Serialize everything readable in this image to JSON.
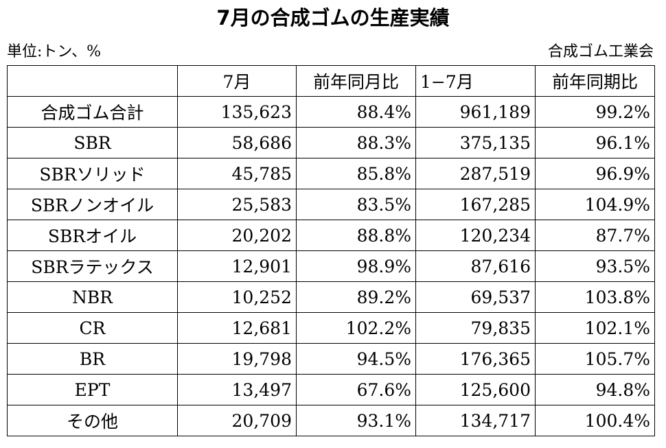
{
  "title": "7月の合成ゴムの生産実績",
  "unit_label": "単位:トン、%",
  "source_label": "合成ゴム工業会",
  "chart_data": {
    "type": "table",
    "title": "7月の合成ゴムの生産実績",
    "columns": [
      "",
      "7月",
      "前年同月比",
      "1−7月",
      "前年同期比"
    ],
    "rows": [
      {
        "name": "合成ゴム合計",
        "month": "135,623",
        "month_yoy": "88.4%",
        "ytd": "961,189",
        "ytd_yoy": "99.2%"
      },
      {
        "name": "SBR",
        "month": "58,686",
        "month_yoy": "88.3%",
        "ytd": "375,135",
        "ytd_yoy": "96.1%"
      },
      {
        "name": "SBRソリッド",
        "month": "45,785",
        "month_yoy": "85.8%",
        "ytd": "287,519",
        "ytd_yoy": "96.9%"
      },
      {
        "name": "SBRノンオイル",
        "month": "25,583",
        "month_yoy": "83.5%",
        "ytd": "167,285",
        "ytd_yoy": "104.9%"
      },
      {
        "name": "SBRオイル",
        "month": "20,202",
        "month_yoy": "88.8%",
        "ytd": "120,234",
        "ytd_yoy": "87.7%"
      },
      {
        "name": "SBRラテックス",
        "month": "12,901",
        "month_yoy": "98.9%",
        "ytd": "87,616",
        "ytd_yoy": "93.5%"
      },
      {
        "name": "NBR",
        "month": "10,252",
        "month_yoy": "89.2%",
        "ytd": "69,537",
        "ytd_yoy": "103.8%"
      },
      {
        "name": "CR",
        "month": "12,681",
        "month_yoy": "102.2%",
        "ytd": "79,835",
        "ytd_yoy": "102.1%"
      },
      {
        "name": "BR",
        "month": "19,798",
        "month_yoy": "94.5%",
        "ytd": "176,365",
        "ytd_yoy": "105.7%"
      },
      {
        "name": "EPT",
        "month": "13,497",
        "month_yoy": "67.6%",
        "ytd": "125,600",
        "ytd_yoy": "94.8%"
      },
      {
        "name": "その他",
        "month": "20,709",
        "month_yoy": "93.1%",
        "ytd": "134,717",
        "ytd_yoy": "100.4%"
      }
    ]
  }
}
